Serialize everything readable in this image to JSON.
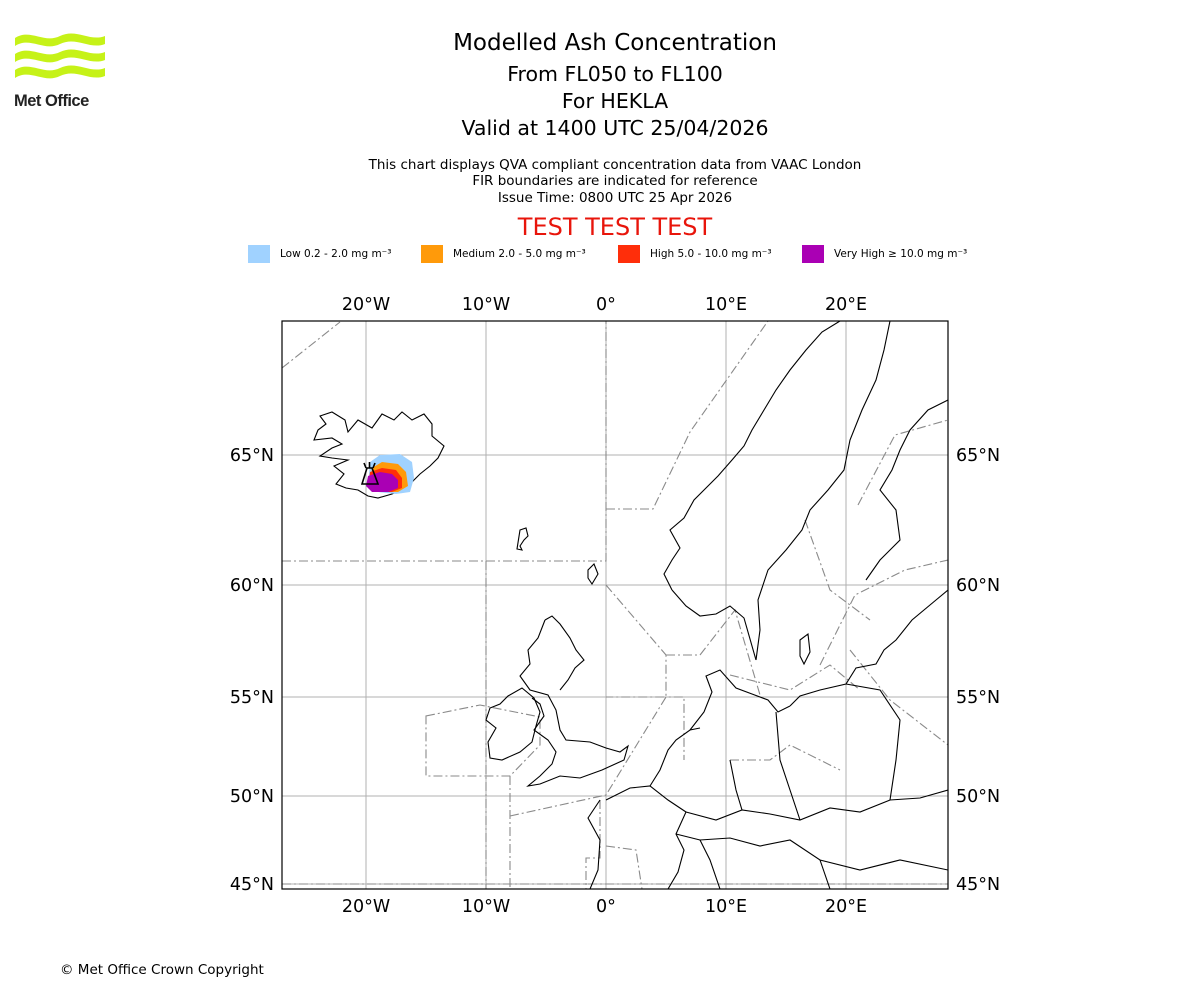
{
  "header": {
    "title": "Modelled Ash Concentration",
    "flight_levels": "From FL050 to FL100",
    "volcano": "For HEKLA",
    "valid": "Valid at 1400 UTC 25/04/2026",
    "note_line1": "This chart displays QVA compliant concentration data from VAAC London",
    "note_line2": "FIR boundaries are indicated for reference",
    "issue_time": "Issue Time: 0800 UTC 25 Apr 2026",
    "test_banner": "TEST TEST TEST"
  },
  "logo": {
    "text": "Met Office",
    "icon": "met-office-wave-logo"
  },
  "legend": [
    {
      "label": "Low 0.2 - 2.0 mg m⁻³",
      "color": "#a0d2ff"
    },
    {
      "label": "Medium 2.0 - 5.0 mg m⁻³",
      "color": "#ff9a0a"
    },
    {
      "label": "High 5.0 - 10.0 mg m⁻³",
      "color": "#ff2e0a"
    },
    {
      "label": "Very High ≥ 10.0 mg m⁻³",
      "color": "#aa00b4"
    }
  ],
  "map": {
    "lon_ticks": [
      "20°W",
      "10°W",
      "0°",
      "10°E",
      "20°E"
    ],
    "lat_ticks": [
      "65°N",
      "60°N",
      "55°N",
      "50°N",
      "45°N"
    ],
    "volcano_symbol": "volcano-icon",
    "ash_center": {
      "lon": -19.7,
      "lat": 63.9
    }
  },
  "footer": {
    "copyright": "© Met Office Crown Copyright"
  }
}
